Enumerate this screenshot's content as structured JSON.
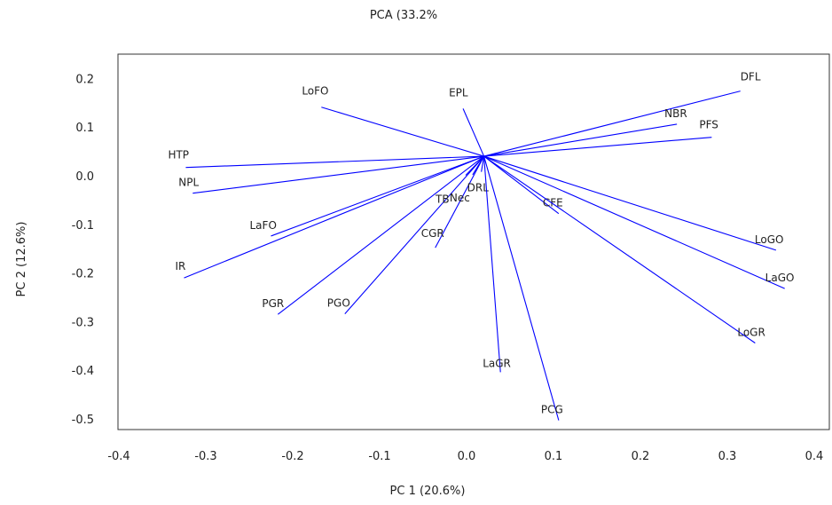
{
  "chart_data": {
    "type": "biplot",
    "title": "PCA (33.2%",
    "xlabel": "PC 1 (20.6%)",
    "ylabel": "PC 2 (12.6%)",
    "xlim": [
      -0.44,
      0.43
    ],
    "ylim": [
      -0.52,
      0.245
    ],
    "xticks": [
      "-0.4",
      "-0.3",
      "-0.2",
      "-0.1",
      "0.0",
      "0.1",
      "0.2",
      "0.3",
      "0.4"
    ],
    "yticks": [
      "0.2",
      "0.1",
      "0.0",
      "-0.1",
      "-0.2",
      "-0.3",
      "-0.4",
      "-0.5"
    ],
    "grid": false,
    "line_color": "#0000ff",
    "origin": [
      0.02,
      0.04
    ],
    "vectors": [
      {
        "label": "DFL",
        "x": 0.315,
        "y": 0.174
      },
      {
        "label": "NBR",
        "x": 0.242,
        "y": 0.106
      },
      {
        "label": "PFS",
        "x": 0.282,
        "y": 0.079
      },
      {
        "label": "EPL",
        "x": -0.004,
        "y": 0.138
      },
      {
        "label": "LoFO",
        "x": -0.167,
        "y": 0.141
      },
      {
        "label": "HTP",
        "x": -0.323,
        "y": 0.017
      },
      {
        "label": "NPL",
        "x": -0.315,
        "y": -0.036
      },
      {
        "label": "LaFO",
        "x": -0.225,
        "y": -0.124
      },
      {
        "label": "IR",
        "x": -0.325,
        "y": -0.21
      },
      {
        "label": "PGR",
        "x": -0.217,
        "y": -0.285
      },
      {
        "label": "PGO",
        "x": -0.14,
        "y": -0.284
      },
      {
        "label": "CGR",
        "x": -0.036,
        "y": -0.148
      },
      {
        "label": "TB",
        "x": -0.001,
        "y": 0.001
      },
      {
        "label": "Nec",
        "x": 0.007,
        "y": 0.002
      },
      {
        "label": "DRL",
        "x": 0.017,
        "y": 0.008
      },
      {
        "label": "CFE",
        "x": 0.106,
        "y": -0.078
      },
      {
        "label": "LaGR",
        "x": 0.039,
        "y": -0.404
      },
      {
        "label": "PCG",
        "x": 0.106,
        "y": -0.503
      },
      {
        "label": "LoGO",
        "x": 0.356,
        "y": -0.153
      },
      {
        "label": "LaGO",
        "x": 0.366,
        "y": -0.232
      },
      {
        "label": "LoGR",
        "x": 0.332,
        "y": -0.344
      }
    ]
  }
}
